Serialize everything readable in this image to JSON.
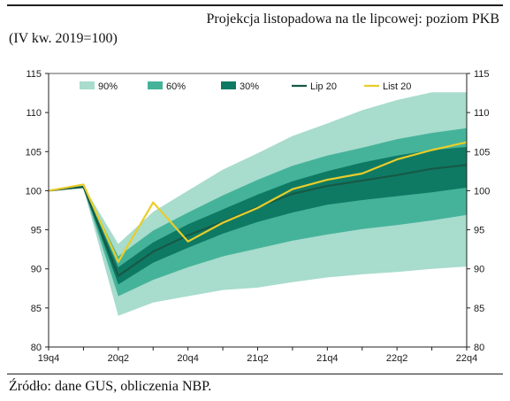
{
  "title": "Projekcja listopadowa na tle lipcowej: poziom PKB",
  "subtitle": "(IV kw. 2019=100)",
  "source": "Źródło: dane GUS, obliczenia NBP.",
  "colors": {
    "band90": "#a8dccd",
    "band60": "#45b39a",
    "band30": "#0f7a64",
    "lip20": "#155a46",
    "list20": "#e9cd2a"
  },
  "chart_data": {
    "type": "area",
    "categories": [
      "19q4",
      "20q1",
      "20q2",
      "20q3",
      "20q4",
      "21q1",
      "21q2",
      "21q3",
      "21q4",
      "22q1",
      "22q2",
      "22q3",
      "22q4"
    ],
    "x_tick_labels": [
      "19q4",
      "20q2",
      "20q4",
      "21q2",
      "21q4",
      "22q2",
      "22q4"
    ],
    "ylim": [
      80,
      115
    ],
    "yticks": [
      80,
      85,
      90,
      95,
      100,
      105,
      110,
      115
    ],
    "grid": false,
    "legend_position": "top",
    "legend": [
      {
        "label": "90%",
        "kind": "band"
      },
      {
        "label": "60%",
        "kind": "band"
      },
      {
        "label": "30%",
        "kind": "band"
      },
      {
        "label": "Lip 20",
        "kind": "line"
      },
      {
        "label": "List 20",
        "kind": "line"
      }
    ],
    "bands": {
      "90": {
        "lower": [
          100,
          100.3,
          84.0,
          85.7,
          86.5,
          87.3,
          87.6,
          88.3,
          88.9,
          89.3,
          89.6,
          90.0,
          90.3
        ],
        "upper": [
          100,
          100.6,
          93.2,
          97.3,
          100.0,
          102.7,
          104.8,
          107.0,
          108.6,
          110.3,
          111.6,
          112.6,
          112.6
        ]
      },
      "60": {
        "lower": [
          100,
          100.3,
          86.5,
          88.6,
          90.2,
          91.6,
          92.6,
          93.6,
          94.4,
          95.1,
          95.6,
          96.2,
          96.9
        ],
        "upper": [
          100,
          100.6,
          91.6,
          94.9,
          97.2,
          99.4,
          101.4,
          103.2,
          104.5,
          105.5,
          106.6,
          107.4,
          108.0
        ]
      },
      "30": {
        "lower": [
          100,
          100.4,
          88.0,
          90.8,
          92.7,
          94.5,
          96.0,
          97.2,
          98.2,
          98.8,
          99.3,
          99.8,
          100.4
        ],
        "upper": [
          100,
          100.6,
          90.2,
          93.4,
          95.7,
          97.6,
          99.5,
          101.2,
          102.5,
          103.6,
          104.5,
          105.2,
          105.6
        ]
      }
    },
    "series": [
      {
        "name": "Lip 20",
        "values": [
          100,
          100.5,
          89.1,
          92.2,
          94.3,
          96.0,
          97.9,
          99.6,
          100.6,
          101.3,
          102.0,
          102.8,
          103.3
        ]
      },
      {
        "name": "List 20",
        "values": [
          100,
          100.8,
          90.9,
          98.5,
          93.5,
          95.9,
          97.8,
          100.2,
          101.4,
          102.2,
          104.0,
          105.2,
          106.2
        ]
      }
    ]
  }
}
